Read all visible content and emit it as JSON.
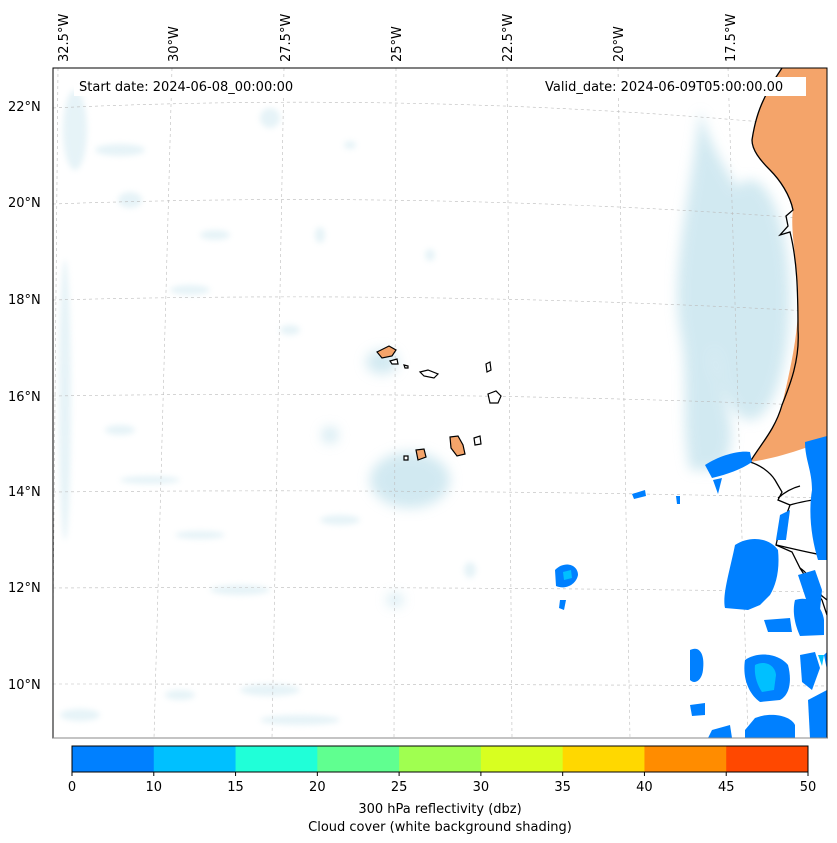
{
  "header": {
    "start_date": "Start date: 2024-06-08_00:00:00",
    "valid_date": "Valid_date: 2024-06-09T05:00:00.00"
  },
  "axes": {
    "lon_labels": [
      "32.5°W",
      "30°W",
      "27.5°W",
      "25°W",
      "22.5°W",
      "20°W",
      "17.5°W"
    ],
    "lat_labels": [
      "22°N",
      "20°N",
      "18°N",
      "16°N",
      "14°N",
      "12°N",
      "10°N"
    ]
  },
  "colorbar": {
    "ticks": [
      "0",
      "10",
      "15",
      "20",
      "25",
      "30",
      "35",
      "40",
      "45",
      "50"
    ],
    "colors": [
      "#0080ff",
      "#00c0ff",
      "#20ffd8",
      "#60ff90",
      "#a0ff50",
      "#d8ff20",
      "#ffd800",
      "#ff8c00",
      "#ff4800"
    ],
    "label_line1": "300 hPa reflectivity (dbz)",
    "label_line2": "Cloud cover (white background shading)"
  },
  "colors": {
    "land_fill": "#f4a46a",
    "cloud_shading": "#add8e6",
    "reflectivity_low": "#0080ff",
    "reflectivity_mid": "#00c0ff"
  }
}
